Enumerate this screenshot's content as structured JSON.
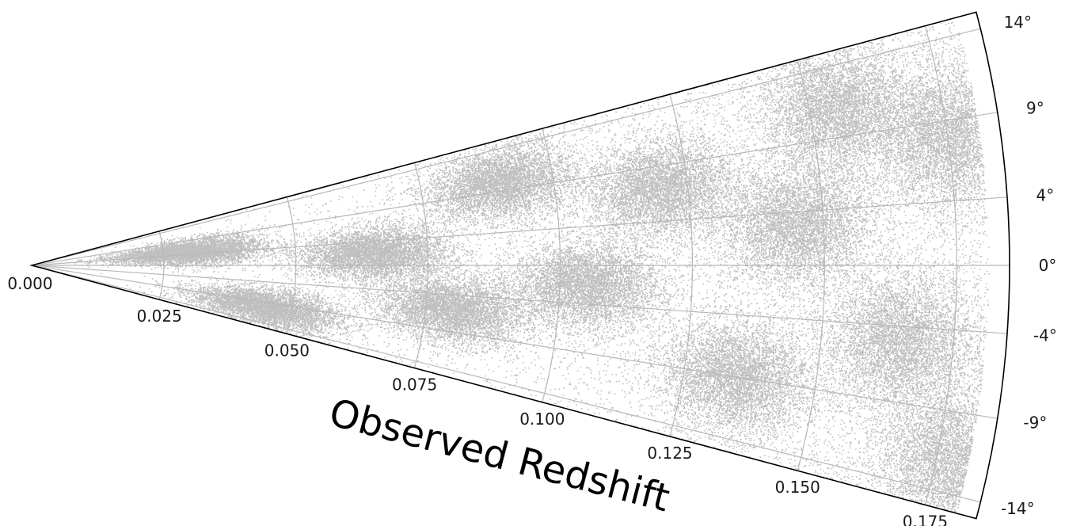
{
  "chart_data": {
    "type": "scatter",
    "projection": "polar-wedge",
    "title": "",
    "rlabel": "Observed Redshift",
    "r_range": [
      0.0,
      0.185
    ],
    "theta_range_deg": [
      -15,
      15
    ],
    "grid": true,
    "r_ticks": [
      0.0,
      0.025,
      0.05,
      0.075,
      0.1,
      0.125,
      0.15,
      0.175
    ],
    "r_tick_labels": [
      "0.000",
      "0.025",
      "0.050",
      "0.075",
      "0.100",
      "0.125",
      "0.150",
      "0.175"
    ],
    "theta_ticks": [
      14,
      9,
      4,
      0,
      -4,
      -9,
      -14
    ],
    "theta_tick_labels": [
      "14°",
      "9°",
      "4°",
      "0°",
      "-4°",
      "-9°",
      "-14°"
    ],
    "point_color": "#000000",
    "point_opacity": 0.25,
    "density_note_points": {
      "clusters": [
        {
          "z": 0.03,
          "theta": 5,
          "weight": 3
        },
        {
          "z": 0.045,
          "theta": -10,
          "weight": 3
        },
        {
          "z": 0.065,
          "theta": 2,
          "weight": 4
        },
        {
          "z": 0.08,
          "theta": -6,
          "weight": 3
        },
        {
          "z": 0.09,
          "theta": 10,
          "weight": 4
        },
        {
          "z": 0.105,
          "theta": -2,
          "weight": 5
        },
        {
          "z": 0.12,
          "theta": 7,
          "weight": 4
        },
        {
          "z": 0.135,
          "theta": -9,
          "weight": 5
        },
        {
          "z": 0.145,
          "theta": 3,
          "weight": 5
        },
        {
          "z": 0.155,
          "theta": 11,
          "weight": 5
        },
        {
          "z": 0.165,
          "theta": -5,
          "weight": 6
        },
        {
          "z": 0.175,
          "theta": 8,
          "weight": 5
        },
        {
          "z": 0.178,
          "theta": -12,
          "weight": 5
        }
      ]
    }
  }
}
